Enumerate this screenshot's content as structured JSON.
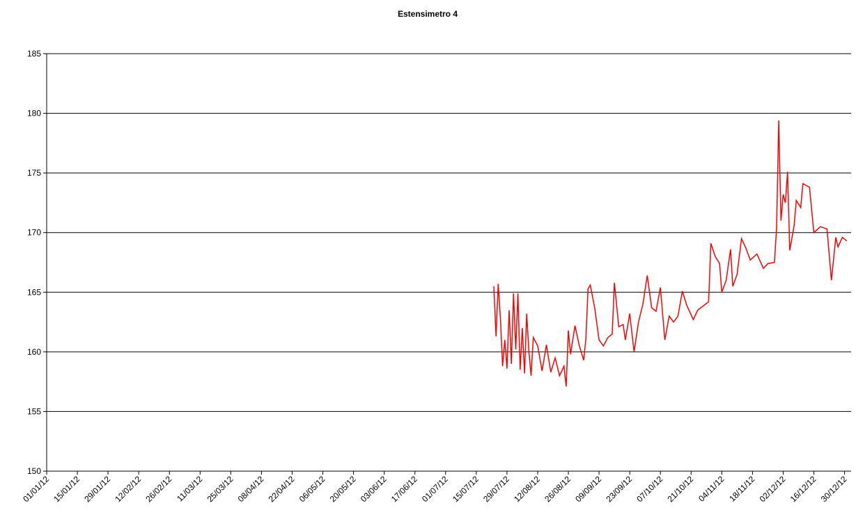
{
  "chart_data": {
    "type": "line",
    "title": "Estensimetro 4",
    "x": [
      "23/07/12",
      "24/07/12",
      "25/07/12",
      "26/07/12",
      "27/07/12",
      "28/07/12",
      "29/07/12",
      "30/07/12",
      "31/07/12",
      "01/08/12",
      "02/08/12",
      "03/08/12",
      "04/08/12",
      "05/08/12",
      "06/08/12",
      "07/08/12",
      "08/08/12",
      "09/08/12",
      "10/08/12",
      "12/08/12",
      "14/08/12",
      "16/08/12",
      "18/08/12",
      "20/08/12",
      "22/08/12",
      "24/08/12",
      "25/08/12",
      "26/08/12",
      "27/08/12",
      "29/08/12",
      "31/08/12",
      "02/09/12",
      "03/09/12",
      "04/09/12",
      "05/09/12",
      "07/09/12",
      "09/09/12",
      "11/09/12",
      "13/09/12",
      "15/09/12",
      "16/09/12",
      "18/09/12",
      "20/09/12",
      "21/09/12",
      "23/09/12",
      "25/09/12",
      "27/09/12",
      "29/09/12",
      "01/10/12",
      "03/10/12",
      "05/10/12",
      "07/10/12",
      "09/10/12",
      "11/10/12",
      "13/10/12",
      "15/10/12",
      "17/10/12",
      "19/10/12",
      "22/10/12",
      "24/10/12",
      "29/10/12",
      "30/10/12",
      "01/11/12",
      "03/11/12",
      "04/11/12",
      "06/11/12",
      "08/11/12",
      "09/11/12",
      "11/11/12",
      "13/11/12",
      "15/11/12",
      "17/11/12",
      "20/11/12",
      "23/11/12",
      "25/11/12",
      "28/11/12",
      "29/11/12",
      "30/11/12",
      "01/12/12",
      "02/12/12",
      "03/12/12",
      "04/12/12",
      "05/12/12",
      "07/12/12",
      "08/12/12",
      "10/12/12",
      "11/12/12",
      "14/12/12",
      "16/12/12",
      "19/12/12",
      "22/12/12",
      "24/12/12",
      "26/12/12",
      "27/12/12",
      "29/12/12",
      "31/12/12"
    ],
    "series": [
      {
        "color": "#ff0000",
        "values": [
          165.5,
          161.3,
          165.7,
          162.8,
          158.8,
          161.0,
          158.6,
          163.5,
          159.0,
          164.9,
          160.2,
          164.9,
          158.5,
          162.0,
          158.2,
          163.2,
          160.0,
          158.0,
          161.2,
          160.5,
          158.4,
          160.6,
          158.3,
          159.5,
          158.0,
          158.8,
          157.1,
          161.8,
          159.8,
          162.2,
          160.5,
          159.3,
          161.1,
          165.3,
          165.6,
          163.7,
          161.0,
          160.5,
          161.2,
          161.5,
          165.8,
          162.1,
          162.3,
          161.0,
          163.2,
          160.0,
          162.5,
          164.0,
          166.4,
          163.7,
          163.4,
          165.4,
          161.0,
          163.0,
          162.5,
          163.0,
          165.1,
          163.9,
          162.7,
          163.5,
          164.2,
          169.1,
          168.0,
          167.4,
          165.0,
          166.0,
          168.6,
          165.5,
          166.5,
          169.5,
          168.7,
          167.7,
          168.2,
          167.0,
          167.4,
          167.5,
          170.4,
          179.4,
          171.0,
          173.2,
          172.5,
          175.1,
          168.5,
          170.6,
          172.7,
          172.1,
          174.1,
          173.8,
          170.0,
          170.5,
          170.3,
          166.0,
          169.6,
          168.8,
          169.6,
          169.3
        ]
      }
    ],
    "xlim": [
      "01/01/12",
      "02/01/13"
    ],
    "xticks": [
      "01/01/12",
      "15/01/12",
      "29/01/12",
      "12/02/12",
      "26/02/12",
      "11/03/12",
      "25/03/12",
      "08/04/12",
      "22/04/12",
      "06/05/12",
      "20/05/12",
      "03/06/12",
      "17/06/12",
      "01/07/12",
      "15/07/12",
      "29/07/12",
      "12/08/12",
      "26/08/12",
      "09/09/12",
      "23/09/12",
      "07/10/12",
      "21/10/12",
      "04/11/12",
      "18/11/12",
      "02/12/12",
      "16/12/12",
      "30/12/12"
    ],
    "ylim": [
      150,
      185
    ],
    "yticks": [
      150,
      155,
      160,
      165,
      170,
      175,
      180,
      185
    ],
    "grid": true
  }
}
